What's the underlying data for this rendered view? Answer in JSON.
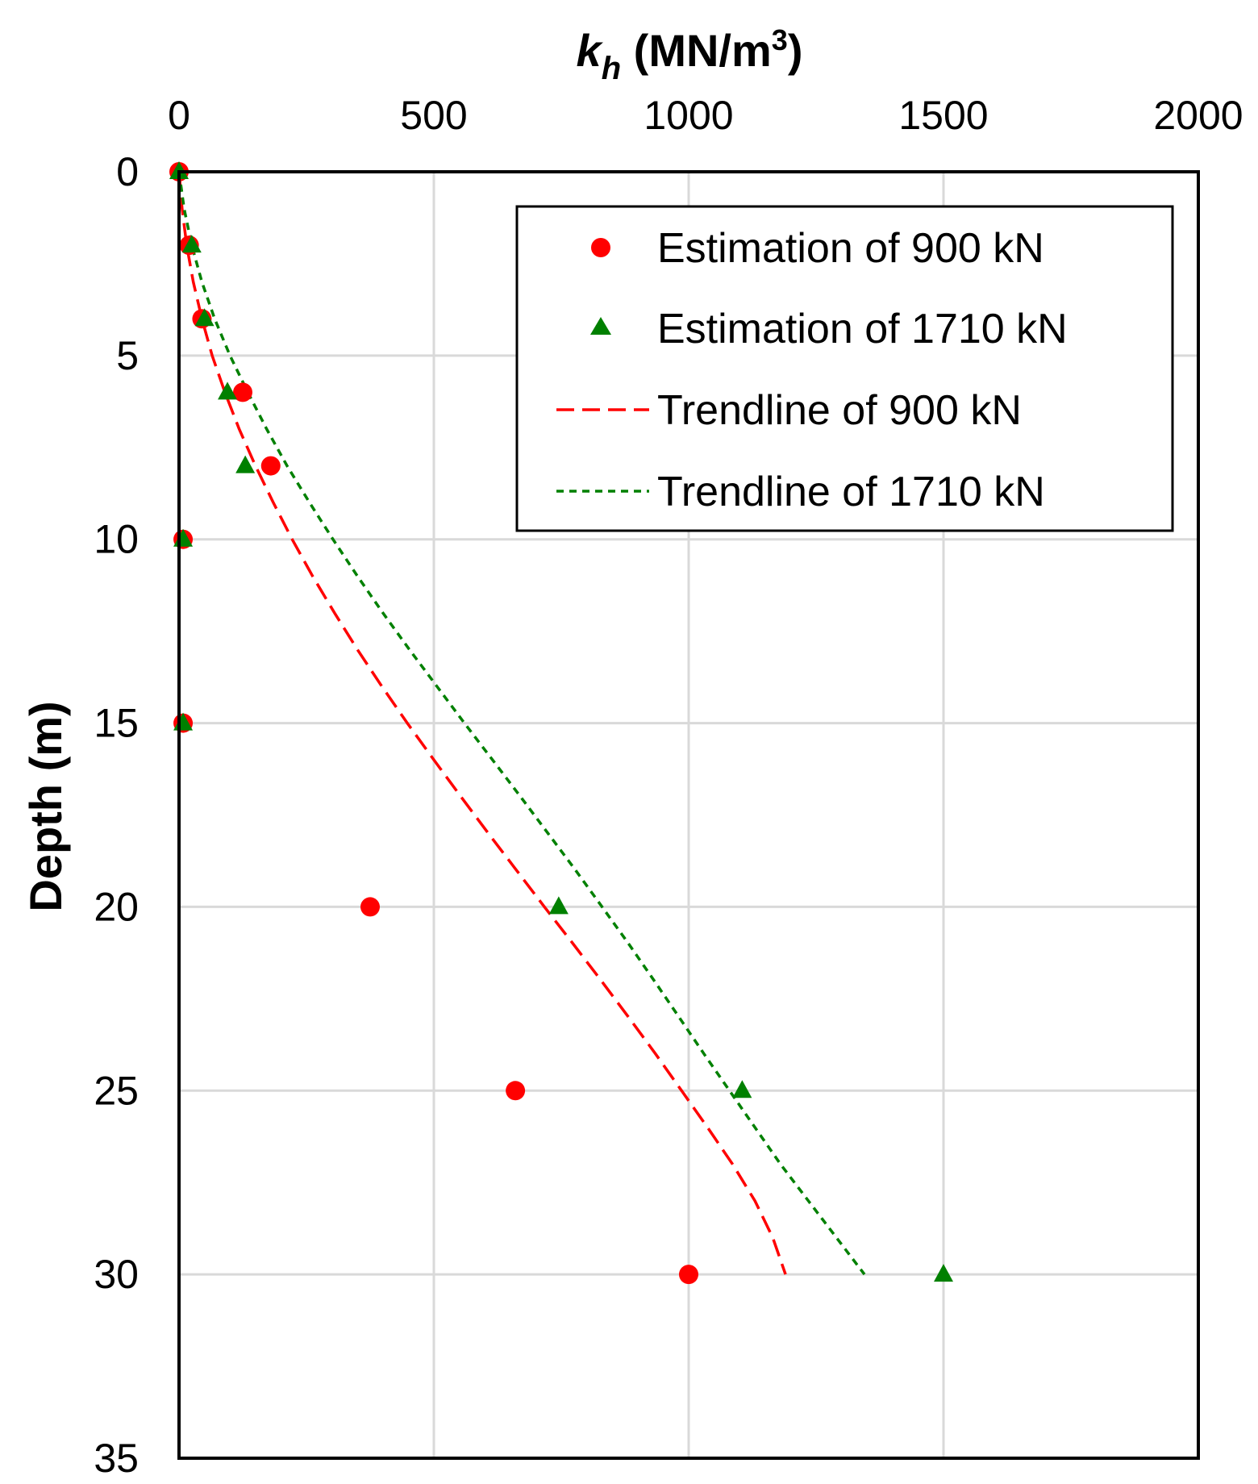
{
  "chart_data": {
    "type": "scatter",
    "title": "",
    "x_axis": {
      "label_var": "k",
      "label_sub": "h",
      "label_unit_pre": " (MN/m",
      "label_unit_sup": "3",
      "label_unit_post": ")",
      "position": "top",
      "min": 0,
      "max": 2000,
      "ticks": [
        0,
        500,
        1000,
        1500,
        2000
      ],
      "tick_labels": [
        "0",
        "500",
        "1000",
        "1500",
        "2000"
      ]
    },
    "y_axis": {
      "label": "Depth (m)",
      "reversed": true,
      "min": 0,
      "max": 35,
      "ticks": [
        0,
        5,
        10,
        15,
        20,
        25,
        30,
        35
      ],
      "tick_labels": [
        "0",
        "5",
        "10",
        "15",
        "20",
        "25",
        "30",
        "35"
      ]
    },
    "grid": true,
    "legend_position": "top-right",
    "series": [
      {
        "name": "Estimation of 900 kN",
        "kind": "markers",
        "marker": "circle",
        "color": "#ff0000",
        "points": [
          [
            0,
            0
          ],
          [
            20,
            2
          ],
          [
            45,
            4
          ],
          [
            125,
            6
          ],
          [
            180,
            8
          ],
          [
            8,
            10
          ],
          [
            8,
            15
          ],
          [
            375,
            20
          ],
          [
            660,
            25
          ],
          [
            1000,
            30
          ]
        ]
      },
      {
        "name": "Estimation of 1710 kN",
        "kind": "markers",
        "marker": "triangle",
        "color": "#008000",
        "points": [
          [
            0,
            0
          ],
          [
            25,
            2
          ],
          [
            50,
            4
          ],
          [
            95,
            6
          ],
          [
            130,
            8
          ],
          [
            8,
            10
          ],
          [
            8,
            15
          ],
          [
            745,
            20
          ],
          [
            1105,
            25
          ],
          [
            1500,
            30
          ]
        ]
      },
      {
        "name": "Trendline of 900 kN",
        "kind": "line",
        "dash": "long",
        "color": "#ff0000",
        "points": [
          [
            0,
            0
          ],
          [
            6,
            1
          ],
          [
            15,
            2
          ],
          [
            28,
            3
          ],
          [
            45,
            4
          ],
          [
            65,
            5
          ],
          [
            90,
            6
          ],
          [
            118,
            7
          ],
          [
            150,
            8
          ],
          [
            185,
            9
          ],
          [
            222,
            10
          ],
          [
            262,
            11
          ],
          [
            305,
            12
          ],
          [
            350,
            13
          ],
          [
            398,
            14
          ],
          [
            448,
            15
          ],
          [
            500,
            16
          ],
          [
            553,
            17
          ],
          [
            607,
            18
          ],
          [
            662,
            19
          ],
          [
            717,
            20
          ],
          [
            773,
            21
          ],
          [
            828,
            22
          ],
          [
            882,
            23
          ],
          [
            935,
            24
          ],
          [
            986,
            25
          ],
          [
            1037,
            26
          ],
          [
            1086,
            27
          ],
          [
            1130,
            28
          ],
          [
            1165,
            29
          ],
          [
            1190,
            30
          ]
        ]
      },
      {
        "name": "Trendline of 1710 kN",
        "kind": "line",
        "dash": "short",
        "color": "#008000",
        "points": [
          [
            0,
            0
          ],
          [
            10,
            1
          ],
          [
            25,
            2
          ],
          [
            45,
            3
          ],
          [
            70,
            4
          ],
          [
            100,
            5
          ],
          [
            135,
            6
          ],
          [
            172,
            7
          ],
          [
            212,
            8
          ],
          [
            256,
            9
          ],
          [
            302,
            10
          ],
          [
            350,
            11
          ],
          [
            400,
            12
          ],
          [
            452,
            13
          ],
          [
            506,
            14
          ],
          [
            560,
            15
          ],
          [
            615,
            16
          ],
          [
            670,
            17
          ],
          [
            724,
            18
          ],
          [
            778,
            19
          ],
          [
            830,
            20
          ],
          [
            882,
            21
          ],
          [
            932,
            22
          ],
          [
            981,
            23
          ],
          [
            1030,
            24
          ],
          [
            1080,
            25
          ],
          [
            1130,
            26
          ],
          [
            1180,
            27
          ],
          [
            1235,
            28
          ],
          [
            1290,
            29
          ],
          [
            1345,
            30
          ]
        ]
      }
    ]
  }
}
